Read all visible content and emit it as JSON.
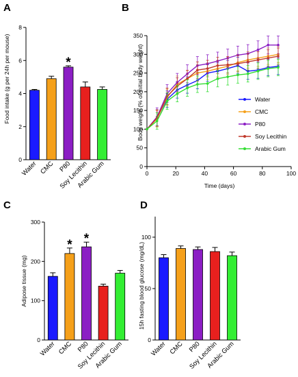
{
  "chart_data": [
    {
      "panel": "A",
      "type": "bar",
      "ylabel": "Food intake (g per 24h per mouse)",
      "ylim": [
        0,
        8
      ],
      "yticks": [
        0,
        2,
        4,
        6,
        8
      ],
      "categories": [
        "Water",
        "CMC",
        "P80",
        "Soy Lecithin",
        "Arabic Gum"
      ],
      "values": [
        4.2,
        4.9,
        5.6,
        4.4,
        4.25
      ],
      "errors": [
        0.05,
        0.15,
        0.08,
        0.3,
        0.15
      ],
      "colors": [
        "#1a1aff",
        "#f5a01a",
        "#8b1ec4",
        "#e8201e",
        "#33ee33"
      ],
      "significant": [
        false,
        false,
        true,
        false,
        false
      ],
      "significance_mark": "*"
    },
    {
      "panel": "B",
      "type": "line",
      "xlabel": "Time (days)",
      "ylabel": "Body weight (% of initial body weight)",
      "xlim": [
        0,
        100
      ],
      "ylim": [
        0,
        350
      ],
      "xticks": [
        0,
        20,
        40,
        60,
        80,
        100
      ],
      "yticks": [
        0,
        50,
        100,
        150,
        200,
        250,
        300,
        350
      ],
      "x": [
        0,
        7,
        14,
        21,
        28,
        35,
        42,
        49,
        56,
        63,
        70,
        77,
        84,
        91
      ],
      "series": [
        {
          "name": "Water",
          "color": "#1a1aff",
          "values": [
            100,
            130,
            180,
            205,
            218,
            230,
            250,
            255,
            262,
            270,
            255,
            258,
            265,
            268
          ],
          "error": 22
        },
        {
          "name": "CMC",
          "color": "#f5a01a",
          "values": [
            100,
            128,
            185,
            220,
            235,
            250,
            255,
            262,
            268,
            278,
            285,
            290,
            295,
            300
          ],
          "error": 22
        },
        {
          "name": "P80",
          "color": "#8b1ec4",
          "values": [
            100,
            133,
            195,
            225,
            248,
            270,
            275,
            282,
            290,
            298,
            302,
            312,
            325,
            325
          ],
          "error": 24
        },
        {
          "name": "Soy Lecithin",
          "color": "#c0392b",
          "values": [
            100,
            130,
            188,
            215,
            235,
            258,
            262,
            270,
            272,
            275,
            280,
            285,
            290,
            295
          ],
          "error": 22
        },
        {
          "name": "Arabic Gum",
          "color": "#33dd33",
          "values": [
            100,
            122,
            175,
            195,
            210,
            220,
            222,
            235,
            240,
            245,
            248,
            255,
            262,
            265
          ],
          "error": 22
        }
      ]
    },
    {
      "panel": "C",
      "type": "bar",
      "ylabel": "Adipose tissue (mg)",
      "ylim": [
        0,
        300
      ],
      "yticks": [
        0,
        100,
        200,
        300
      ],
      "categories": [
        "Water",
        "CMC",
        "P80",
        "Soy Lecithin",
        "Arabic Gum"
      ],
      "values": [
        162,
        220,
        237,
        137,
        170
      ],
      "errors": [
        9,
        14,
        12,
        5,
        7
      ],
      "colors": [
        "#1a1aff",
        "#f5a01a",
        "#8b1ec4",
        "#e8201e",
        "#33ee33"
      ],
      "significant": [
        false,
        true,
        true,
        false,
        false
      ],
      "significance_mark": "*"
    },
    {
      "panel": "D",
      "type": "bar",
      "ylabel": "15h fasting blood glucose (mg/dL)",
      "ylim": [
        0,
        120
      ],
      "yticks": [
        0,
        50,
        100
      ],
      "categories": [
        "Water",
        "CMC",
        "P80",
        "Soy Lecithin",
        "Arabic Gum"
      ],
      "values": [
        80,
        89,
        88,
        86,
        82
      ],
      "errors": [
        3,
        2.5,
        2.5,
        4,
        3.5
      ],
      "colors": [
        "#1a1aff",
        "#f5a01a",
        "#8b1ec4",
        "#e8201e",
        "#33ee33"
      ],
      "significant": [
        false,
        false,
        false,
        false,
        false
      ],
      "significance_mark": "*"
    }
  ]
}
